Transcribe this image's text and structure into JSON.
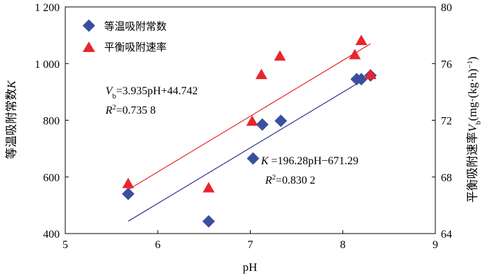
{
  "chart_data": {
    "type": "scatter",
    "xlabel": "pH",
    "ylabel_left": "等温吸附常数K",
    "ylabel_right": "平衡吸附速率V_b(mg·(kg·h)⁻¹)",
    "xlim": [
      5,
      9
    ],
    "ylim_left": [
      400,
      1200
    ],
    "ylim_right": [
      64,
      80
    ],
    "x_ticks": [
      "5",
      "6",
      "7",
      "8",
      "9"
    ],
    "y_left_ticks": [
      "400",
      "600",
      "800",
      "1 000",
      "1 200"
    ],
    "y_right_ticks": [
      "64",
      "68",
      "72",
      "76",
      "80"
    ],
    "legend_position": "top-left",
    "series": [
      {
        "name": "等温吸附常数",
        "axis": "left",
        "marker": "diamond",
        "color": "#3a4f9f",
        "points": [
          {
            "x": 5.68,
            "y": 540
          },
          {
            "x": 6.55,
            "y": 443
          },
          {
            "x": 7.03,
            "y": 665
          },
          {
            "x": 7.13,
            "y": 785
          },
          {
            "x": 7.33,
            "y": 798
          },
          {
            "x": 8.15,
            "y": 945
          },
          {
            "x": 8.2,
            "y": 945
          },
          {
            "x": 8.3,
            "y": 958
          }
        ],
        "fit": {
          "slope": 196.28,
          "intercept": -671.29,
          "x_range": [
            5.68,
            8.3
          ],
          "color": "#30308f",
          "equation": "K =196.28pH−671.29",
          "r2_value": "=0.830 2"
        }
      },
      {
        "name": "平衡吸附速率",
        "axis": "right",
        "marker": "triangle",
        "color": "#e8262b",
        "points": [
          {
            "x": 5.68,
            "y": 67.5
          },
          {
            "x": 6.55,
            "y": 67.2
          },
          {
            "x": 7.02,
            "y": 71.9
          },
          {
            "x": 7.12,
            "y": 75.2
          },
          {
            "x": 7.32,
            "y": 76.5
          },
          {
            "x": 8.13,
            "y": 76.6
          },
          {
            "x": 8.2,
            "y": 77.6
          },
          {
            "x": 8.3,
            "y": 75.2
          }
        ],
        "fit": {
          "slope": 3.935,
          "intercept": 44.742,
          "x_range": [
            5.68,
            8.3
          ],
          "color": "#e8262b",
          "equation": "V_b=3.935pH+44.742",
          "r2_value": "=0.735 8"
        }
      }
    ]
  }
}
